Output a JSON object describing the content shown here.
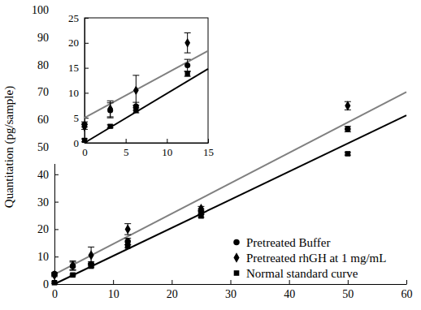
{
  "chart_data": [
    {
      "type": "scatter",
      "y_label": "Quantitation (pg/sample)",
      "xlim": [
        0,
        60
      ],
      "xticks": [
        0,
        10,
        20,
        30,
        40,
        50,
        60
      ],
      "ylim": [
        0,
        100
      ],
      "yticks": [
        0,
        10,
        20,
        30,
        40,
        50,
        60,
        70,
        80,
        90,
        100
      ],
      "legend": "lower right",
      "series": [
        {
          "name": "Pretreated Buffer",
          "marker": "circle",
          "color": "#000000",
          "x": [
            0,
            3.125,
            6.25,
            12.5,
            25,
            50
          ],
          "values": [
            3.7,
            6.5,
            7.3,
            15.5,
            26.5,
            56.5
          ],
          "errors": [
            0.5,
            1.5,
            0.8,
            1.2,
            0.8,
            1
          ]
        },
        {
          "name": "Pretreated rhGH at 1 mg/mL",
          "marker": "diamond",
          "color": "#000000",
          "x": [
            0,
            3.125,
            6.25,
            12.5,
            25,
            50
          ],
          "values": [
            3.2,
            6.8,
            10.5,
            20,
            27.5,
            65
          ],
          "errors": [
            0.5,
            1.6,
            3,
            2,
            0.8,
            1.5
          ]
        },
        {
          "name": "Normal standard curve",
          "marker": "square",
          "color": "#000000",
          "x": [
            0,
            3.125,
            6.25,
            12.5,
            25,
            50
          ],
          "values": [
            0.5,
            3.3,
            6.5,
            13.8,
            24.8,
            47.5
          ],
          "errors": [
            0.3,
            0.3,
            0.5,
            0.5,
            0.5,
            0.5
          ]
        },
        {
          "type": "line",
          "color": "#808080",
          "x": [
            0,
            60
          ],
          "values": [
            3.5,
            70
          ]
        },
        {
          "type": "line",
          "color": "#000000",
          "x": [
            0,
            60
          ],
          "values": [
            0,
            61.5
          ]
        }
      ]
    },
    {
      "type": "scatter",
      "xlim": [
        0,
        15
      ],
      "xticks": [
        0,
        5,
        10,
        15
      ],
      "ylim": [
        0,
        25
      ],
      "yticks": [
        0,
        5,
        10,
        15,
        20,
        25
      ],
      "series": [
        {
          "marker": "circle",
          "color": "#000000",
          "x": [
            0,
            3.125,
            6.25,
            12.5
          ],
          "values": [
            3.7,
            6.5,
            7.3,
            15.5
          ],
          "errors": [
            0.5,
            1.5,
            0.8,
            1.2
          ]
        },
        {
          "marker": "diamond",
          "color": "#000000",
          "x": [
            0,
            3.125,
            6.25,
            12.5
          ],
          "values": [
            3.2,
            6.8,
            10.5,
            20
          ],
          "errors": [
            0.5,
            1.6,
            3,
            2
          ]
        },
        {
          "marker": "square",
          "color": "#000000",
          "x": [
            0,
            3.125,
            6.25,
            12.5
          ],
          "values": [
            0.5,
            3.3,
            6.5,
            13.8
          ],
          "errors": [
            0.3,
            0.3,
            0.5,
            0.5
          ]
        },
        {
          "type": "line",
          "color": "#808080",
          "x": [
            0,
            15
          ],
          "values": [
            5,
            18.4
          ]
        },
        {
          "type": "line",
          "color": "#000000",
          "x": [
            0,
            15
          ],
          "values": [
            0,
            14.8
          ]
        }
      ]
    }
  ]
}
